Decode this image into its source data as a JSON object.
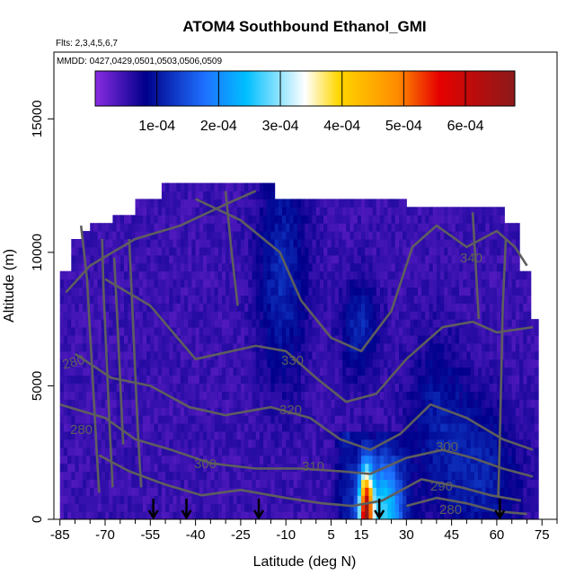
{
  "chart_data": {
    "type": "heatmap",
    "title": "ATOM4 Southbound Ethanol_GMI",
    "subtitle_flights": "Flts: 2,3,4,5,6,7",
    "subtitle_dates": "MMDD: 0427,0429,0501,0503,0506,0509",
    "xlabel": "Latitude (deg N)",
    "ylabel": "Altitude (m)",
    "xlim": [
      -87,
      80
    ],
    "ylim": [
      0,
      17500
    ],
    "x_ticks": [
      "-85",
      "-70",
      "-55",
      "-40",
      "-25",
      "-10",
      "5",
      "15",
      "30",
      "45",
      "60",
      "75"
    ],
    "y_ticks": [
      "0",
      "5000",
      "10000",
      "15000"
    ],
    "colorbar": {
      "range": [
        0,
        0.00068
      ],
      "ticks": [
        "1e-04",
        "2e-04",
        "3e-04",
        "4e-04",
        "5e-04",
        "6e-04"
      ],
      "colors": [
        "#8a2be2",
        "#00008b",
        "#1e90ff",
        "#00bfff",
        "#ffffff",
        "#ffd700",
        "#ff4500",
        "#cc0000",
        "#8b1a1a"
      ]
    },
    "contour_color": "#5e5e5e",
    "contour_labels": [
      "340",
      "330",
      "320",
      "310",
      "300",
      "300",
      "290",
      "280",
      "280",
      "280"
    ],
    "flight_profile_latitudes": [
      -54,
      -43,
      -19,
      21,
      61
    ],
    "hotspot": {
      "lat": 16,
      "alt_top": 2000,
      "value_max": 0.00065
    }
  }
}
